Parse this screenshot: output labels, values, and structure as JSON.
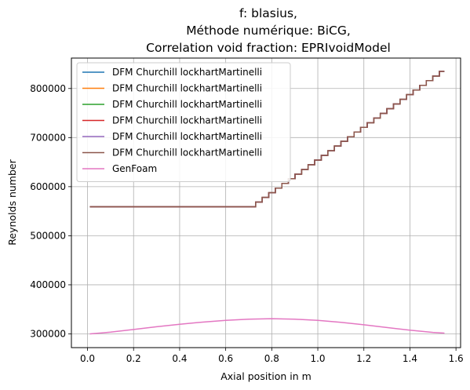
{
  "chart_data": {
    "type": "line",
    "title_lines": [
      "f: blasius,",
      "Méthode numérique: BiCG,",
      "Correlation void fraction: EPRIvoidModel"
    ],
    "xlabel": "Axial position in m",
    "ylabel": "Reynolds number",
    "xlim": [
      -0.07,
      1.62
    ],
    "ylim": [
      272000,
      862000
    ],
    "xticks": [
      0.0,
      0.2,
      0.4,
      0.6,
      0.8,
      1.0,
      1.2,
      1.4,
      1.6
    ],
    "xtick_labels": [
      "0.0",
      "0.2",
      "0.4",
      "0.6",
      "0.8",
      "1.0",
      "1.2",
      "1.4",
      "1.6"
    ],
    "yticks": [
      300000,
      400000,
      500000,
      600000,
      700000,
      800000
    ],
    "ytick_labels": [
      "300000",
      "400000",
      "500000",
      "600000",
      "700000",
      "800000"
    ],
    "grid": true,
    "legend_position": "upper-left",
    "step_profile": {
      "x_start": 0.01,
      "flat_end": 0.73,
      "x_end": 1.55,
      "y_flat": 559000,
      "y_end": 835000,
      "step_width": 0.0285
    },
    "series": [
      {
        "name": "DFM Churchill lockhartMartinelli",
        "color": "#1f77b4",
        "style": "step"
      },
      {
        "name": "DFM Churchill lockhartMartinelli",
        "color": "#ff7f0e",
        "style": "step"
      },
      {
        "name": "DFM Churchill lockhartMartinelli",
        "color": "#2ca02c",
        "style": "step"
      },
      {
        "name": "DFM Churchill lockhartMartinelli",
        "color": "#d62728",
        "style": "step"
      },
      {
        "name": "DFM Churchill lockhartMartinelli",
        "color": "#9467bd",
        "style": "step"
      },
      {
        "name": "DFM Churchill lockhartMartinelli",
        "color": "#8c564b",
        "style": "step"
      },
      {
        "name": "GenFoam",
        "color": "#e377c2",
        "style": "line",
        "x": [
          0.01,
          0.1,
          0.2,
          0.3,
          0.4,
          0.5,
          0.6,
          0.7,
          0.8,
          0.9,
          1.0,
          1.1,
          1.2,
          1.3,
          1.4,
          1.5,
          1.55
        ],
        "y": [
          300000,
          303500,
          309000,
          314500,
          319500,
          324000,
          327500,
          330000,
          331000,
          330000,
          327500,
          323500,
          318500,
          313000,
          307500,
          303000,
          301500
        ]
      }
    ]
  }
}
